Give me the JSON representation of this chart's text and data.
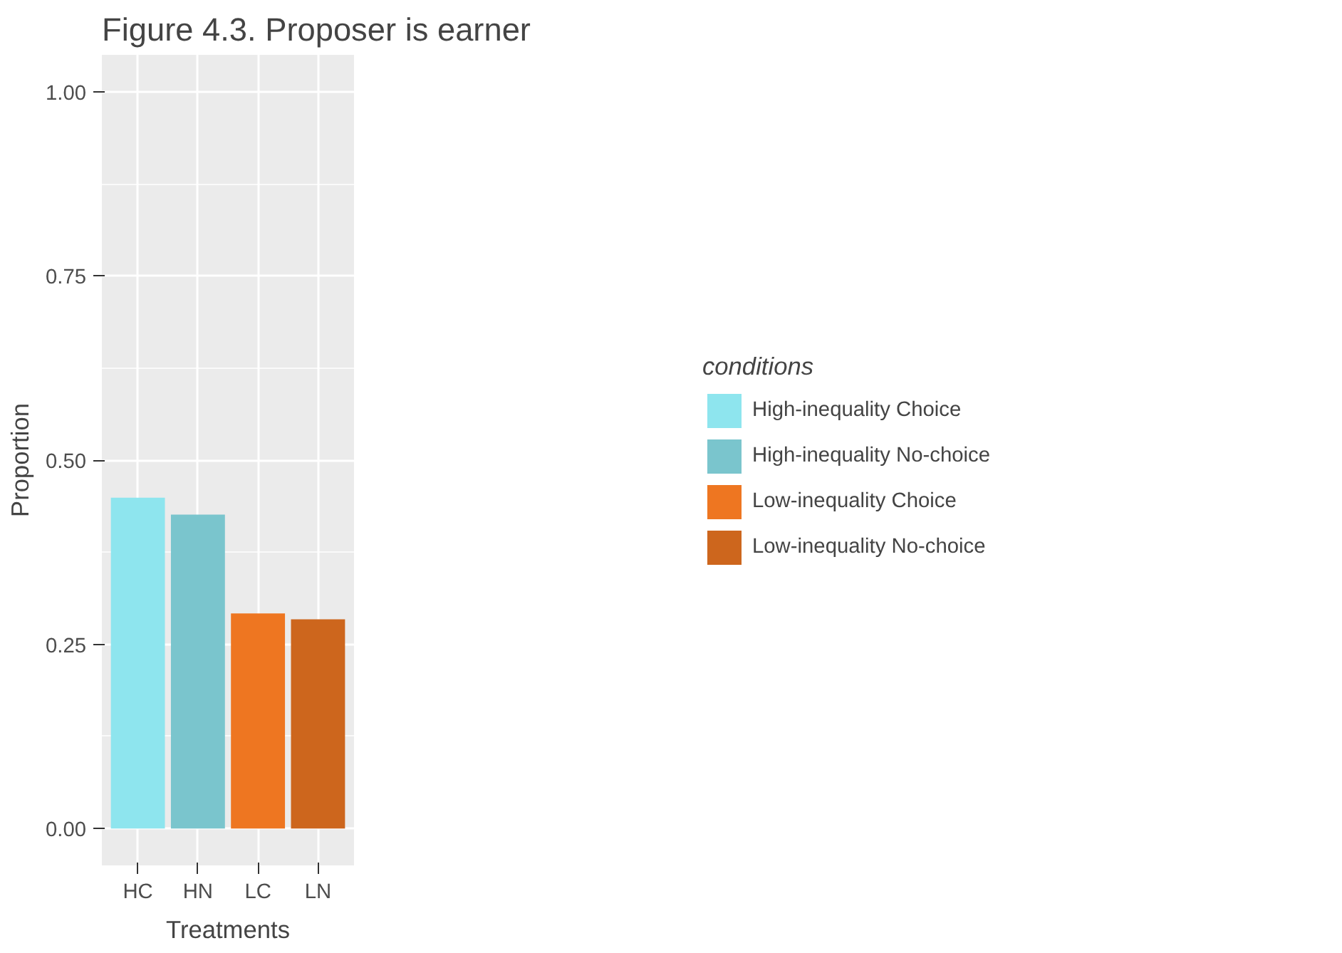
{
  "chart_data": {
    "type": "bar",
    "title": "Figure 4.3. Proposer is earner",
    "xlabel": "Treatments",
    "ylabel": "Proportion",
    "legend_title": "conditions",
    "categories": [
      "HC",
      "HN",
      "LC",
      "LN"
    ],
    "series": [
      {
        "name": "High-inequality Choice",
        "color": "#8ee5ee",
        "values": [
          0.449,
          null,
          null,
          null
        ]
      },
      {
        "name": "High-inequality No-choice",
        "color": "#7ac5cd",
        "values": [
          null,
          0.426,
          null,
          null
        ]
      },
      {
        "name": "Low-inequality Choice",
        "color": "#ee7621",
        "values": [
          null,
          null,
          0.292,
          null
        ]
      },
      {
        "name": "Low-inequality No-choice",
        "color": "#cd661d",
        "values": [
          null,
          null,
          null,
          0.284
        ]
      }
    ],
    "ylim": [
      -0.05,
      1.05
    ],
    "yticks": [
      {
        "value": 0,
        "label": "0.00"
      },
      {
        "value": 0.25,
        "label": "0.25"
      },
      {
        "value": 0.5,
        "label": "0.50"
      },
      {
        "value": 0.75,
        "label": "0.75"
      },
      {
        "value": 1,
        "label": "1.00"
      }
    ],
    "grid": true,
    "legend": "right"
  }
}
